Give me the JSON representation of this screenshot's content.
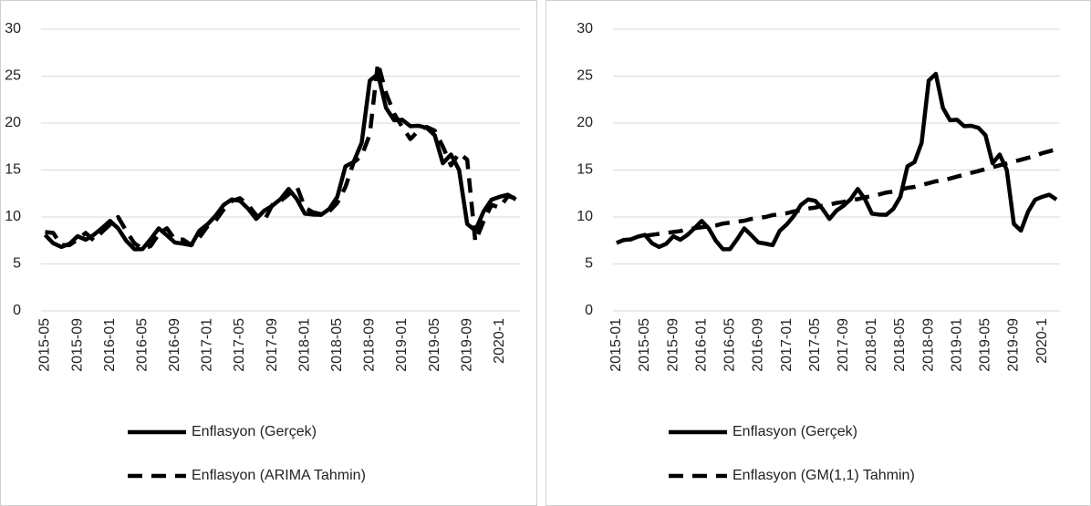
{
  "chart_data": [
    {
      "type": "line",
      "categories": [
        "2015-05",
        null,
        null,
        null,
        "2015-09",
        null,
        null,
        null,
        "2016-01",
        null,
        null,
        null,
        "2016-05",
        null,
        null,
        null,
        "2016-09",
        null,
        null,
        null,
        "2017-01",
        null,
        null,
        null,
        "2017-05",
        null,
        null,
        null,
        "2017-09",
        null,
        null,
        null,
        "2018-01",
        null,
        null,
        null,
        "2018-05",
        null,
        null,
        null,
        "2018-09",
        null,
        null,
        null,
        "2019-01",
        null,
        null,
        null,
        "2019-05",
        null,
        null,
        null,
        "2019-09",
        null,
        null,
        null,
        "2020-1",
        null,
        null
      ],
      "series": [
        {
          "name": "Enflasyon (Gerçek)",
          "color": "#000000",
          "line_style": "solid",
          "values": [
            8.09,
            7.2,
            6.81,
            7.14,
            7.95,
            7.58,
            8.1,
            8.81,
            9.58,
            8.78,
            7.46,
            6.57,
            6.58,
            7.64,
            8.79,
            8.05,
            7.28,
            7.16,
            7.0,
            8.53,
            9.22,
            10.13,
            11.29,
            11.87,
            11.72,
            10.9,
            9.79,
            10.68,
            11.2,
            11.9,
            12.98,
            11.92,
            10.35,
            10.26,
            10.23,
            10.85,
            12.15,
            15.39,
            15.85,
            17.9,
            24.52,
            25.24,
            21.62,
            20.3,
            20.35,
            19.67,
            19.71,
            19.5,
            18.71,
            15.72,
            16.65,
            15.01,
            9.26,
            8.55,
            10.56,
            11.84,
            12.15,
            12.37,
            11.86
          ]
        },
        {
          "name": "Enflasyon (ARIMA Tahmin)",
          "color": "#000000",
          "line_style": "dashed",
          "values": [
            8.4,
            8.3,
            7.0,
            7.0,
            7.6,
            8.3,
            7.5,
            8.4,
            9.2,
            10.0,
            8.5,
            7.2,
            6.6,
            6.9,
            8.2,
            8.8,
            7.6,
            7.6,
            7.0,
            7.8,
            9.0,
            9.6,
            10.8,
            11.7,
            12.0,
            11.3,
            10.2,
            9.6,
            11.3,
            11.7,
            12.4,
            13.3,
            11.0,
            10.5,
            10.3,
            10.6,
            11.5,
            13.2,
            15.8,
            16.5,
            18.8,
            26.4,
            23.2,
            21.0,
            19.6,
            18.3,
            19.2,
            19.6,
            19.2,
            17.5,
            15.5,
            16.8,
            16.1,
            7.4,
            9.5,
            11.3,
            11.0,
            12.2,
            12.0
          ]
        }
      ],
      "ylim": [
        0,
        30
      ],
      "yticks": [
        0,
        5,
        10,
        15,
        20,
        25,
        30
      ],
      "grid": true,
      "legend": "bottom"
    },
    {
      "type": "line",
      "categories": [
        "2015-01",
        null,
        null,
        null,
        "2015-05",
        null,
        null,
        null,
        "2015-09",
        null,
        null,
        null,
        "2016-01",
        null,
        null,
        null,
        "2016-05",
        null,
        null,
        null,
        "2016-09",
        null,
        null,
        null,
        "2017-01",
        null,
        null,
        null,
        "2017-05",
        null,
        null,
        null,
        "2017-09",
        null,
        null,
        null,
        "2018-01",
        null,
        null,
        null,
        "2018-05",
        null,
        null,
        null,
        "2018-09",
        null,
        null,
        null,
        "2019-01",
        null,
        null,
        null,
        "2019-05",
        null,
        null,
        null,
        "2019-09",
        null,
        null,
        null,
        "2020-1",
        null,
        null
      ],
      "series": [
        {
          "name": "Enflasyon (Gerçek)",
          "color": "#000000",
          "line_style": "solid",
          "values": [
            7.24,
            7.55,
            7.61,
            7.91,
            8.09,
            7.2,
            6.81,
            7.14,
            7.95,
            7.58,
            8.1,
            8.81,
            9.58,
            8.78,
            7.46,
            6.57,
            6.58,
            7.64,
            8.79,
            8.05,
            7.28,
            7.16,
            7.0,
            8.53,
            9.22,
            10.13,
            11.29,
            11.87,
            11.72,
            10.9,
            9.79,
            10.68,
            11.2,
            11.9,
            12.98,
            11.92,
            10.35,
            10.26,
            10.23,
            10.85,
            12.15,
            15.39,
            15.85,
            17.9,
            24.52,
            25.24,
            21.62,
            20.3,
            20.35,
            19.67,
            19.71,
            19.5,
            18.71,
            15.72,
            16.65,
            15.01,
            9.26,
            8.55,
            10.56,
            11.84,
            12.15,
            12.37,
            11.86
          ]
        },
        {
          "name": "Enflasyon (GM(1,1) Tahmin)",
          "color": "#000000",
          "line_style": "dashed",
          "values": [
            null,
            null,
            null,
            null,
            8.0,
            8.1,
            8.2,
            8.3,
            8.4,
            8.5,
            8.7,
            8.8,
            8.9,
            9.0,
            9.1,
            9.3,
            9.4,
            9.5,
            9.6,
            9.8,
            9.9,
            10.0,
            10.2,
            10.3,
            10.4,
            10.6,
            10.7,
            10.9,
            11.0,
            11.2,
            11.3,
            11.5,
            11.6,
            11.8,
            11.9,
            12.1,
            12.2,
            12.4,
            12.6,
            12.7,
            12.9,
            13.1,
            13.2,
            13.4,
            13.6,
            13.8,
            13.9,
            14.1,
            14.3,
            14.5,
            14.7,
            14.9,
            15.1,
            15.3,
            15.5,
            15.7,
            15.9,
            16.1,
            16.3,
            16.5,
            16.8,
            17.0,
            17.2
          ]
        }
      ],
      "ylim": [
        0,
        30
      ],
      "yticks": [
        0,
        5,
        10,
        15,
        20,
        25,
        30
      ],
      "grid": true,
      "legend": "bottom"
    }
  ]
}
